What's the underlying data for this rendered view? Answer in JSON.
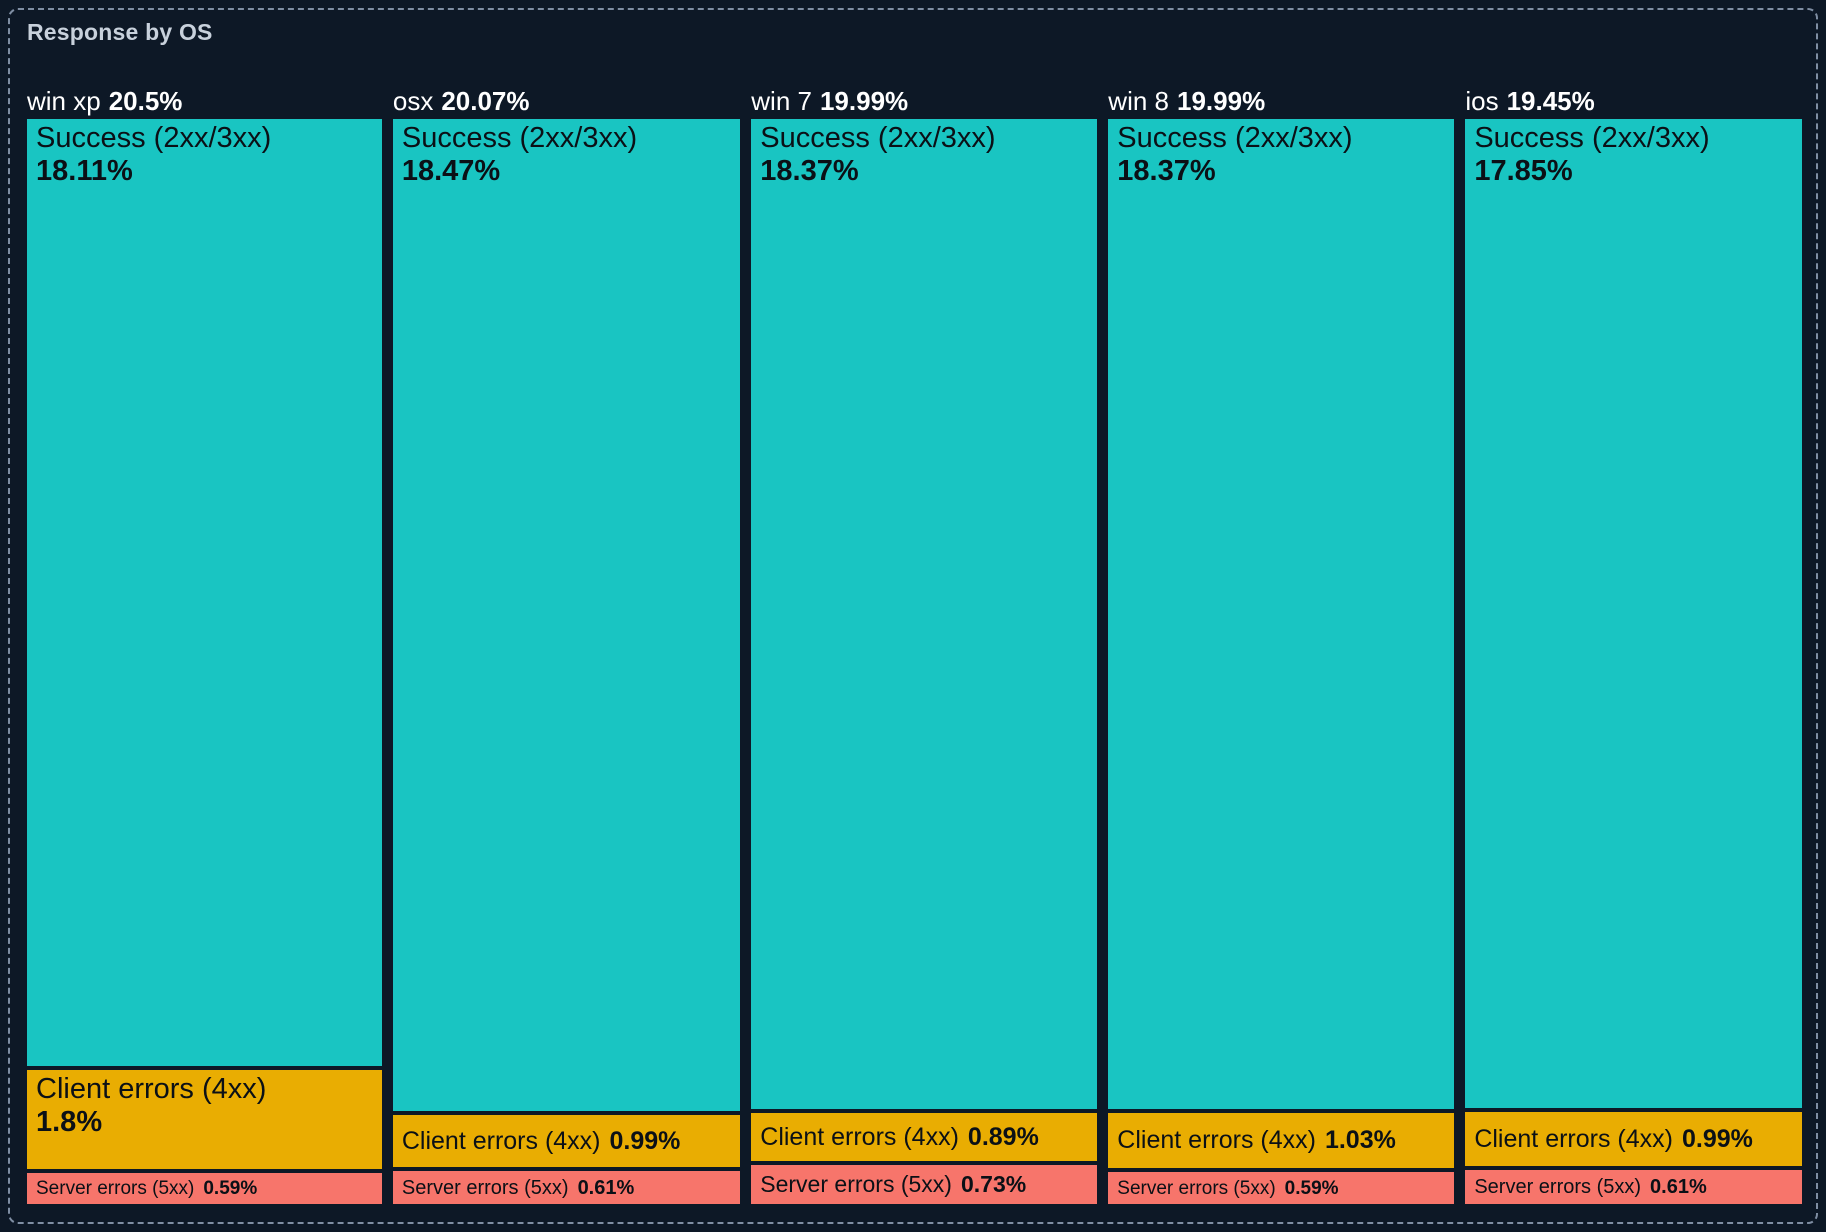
{
  "panel": {
    "title": "Response by OS"
  },
  "chart_data": {
    "type": "treemap",
    "title": "Response by OS",
    "orientation": "columns",
    "unit": "%",
    "colors": {
      "success": "#19C5C2",
      "client": "#E9AD02",
      "server": "#F7756B"
    },
    "background": "#0D1826",
    "groups": [
      {
        "label": "win xp",
        "share": "20.5%",
        "share_value": 20.5,
        "segments": [
          {
            "label": "Success (2xx/3xx)",
            "pct": "18.11%",
            "value": 18.11,
            "color_key": "success"
          },
          {
            "label": "Client errors (4xx)",
            "pct": "1.8%",
            "value": 1.8,
            "color_key": "client"
          },
          {
            "label": "Server errors (5xx)",
            "pct": "0.59%",
            "value": 0.59,
            "color_key": "server"
          }
        ]
      },
      {
        "label": "osx",
        "share": "20.07%",
        "share_value": 20.07,
        "segments": [
          {
            "label": "Success (2xx/3xx)",
            "pct": "18.47%",
            "value": 18.47,
            "color_key": "success"
          },
          {
            "label": "Client errors (4xx)",
            "pct": "0.99%",
            "value": 0.99,
            "color_key": "client"
          },
          {
            "label": "Server errors (5xx)",
            "pct": "0.61%",
            "value": 0.61,
            "color_key": "server"
          }
        ]
      },
      {
        "label": "win 7",
        "share": "19.99%",
        "share_value": 19.99,
        "segments": [
          {
            "label": "Success (2xx/3xx)",
            "pct": "18.37%",
            "value": 18.37,
            "color_key": "success"
          },
          {
            "label": "Client errors (4xx)",
            "pct": "0.89%",
            "value": 0.89,
            "color_key": "client"
          },
          {
            "label": "Server errors (5xx)",
            "pct": "0.73%",
            "value": 0.73,
            "color_key": "server"
          }
        ]
      },
      {
        "label": "win 8",
        "share": "19.99%",
        "share_value": 19.99,
        "segments": [
          {
            "label": "Success (2xx/3xx)",
            "pct": "18.37%",
            "value": 18.37,
            "color_key": "success"
          },
          {
            "label": "Client errors (4xx)",
            "pct": "1.03%",
            "value": 1.03,
            "color_key": "client"
          },
          {
            "label": "Server errors (5xx)",
            "pct": "0.59%",
            "value": 0.59,
            "color_key": "server"
          }
        ]
      },
      {
        "label": "ios",
        "share": "19.45%",
        "share_value": 19.45,
        "segments": [
          {
            "label": "Success (2xx/3xx)",
            "pct": "17.85%",
            "value": 17.85,
            "color_key": "success"
          },
          {
            "label": "Client errors (4xx)",
            "pct": "0.99%",
            "value": 0.99,
            "color_key": "client"
          },
          {
            "label": "Server errors (5xx)",
            "pct": "0.61%",
            "value": 0.61,
            "color_key": "server"
          }
        ]
      }
    ]
  }
}
